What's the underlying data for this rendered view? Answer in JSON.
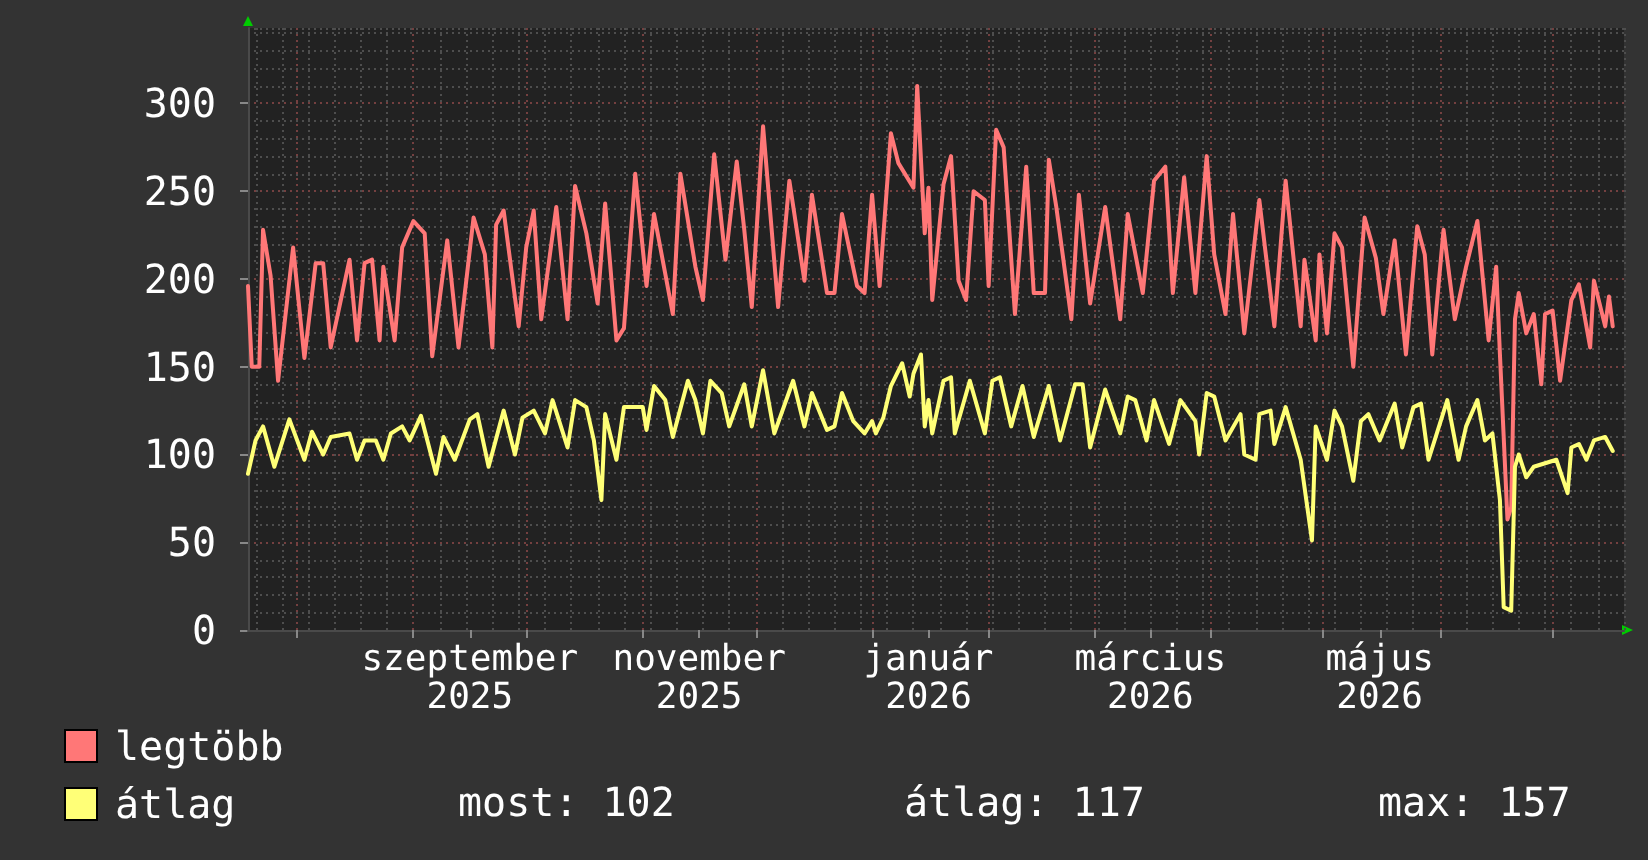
{
  "chart_data": {
    "type": "line",
    "xlim": [
      "2025-07-19",
      "2026-07-20"
    ],
    "xticks": [
      {
        "value": "2025-08-01",
        "label": null
      },
      {
        "value": "2025-09-01",
        "label": null
      },
      {
        "value": "2025-09-16",
        "label": "szeptember 2025"
      },
      {
        "value": "2025-10-01",
        "label": null
      },
      {
        "value": "2025-11-01",
        "label": null
      },
      {
        "value": "2025-11-16",
        "label": "november 2025"
      },
      {
        "value": "2025-12-01",
        "label": null
      },
      {
        "value": "2026-01-01",
        "label": null
      },
      {
        "value": "2026-01-16",
        "label": "január 2026"
      },
      {
        "value": "2026-02-01",
        "label": null
      },
      {
        "value": "2026-03-01",
        "label": null
      },
      {
        "value": "2026-03-16",
        "label": "március 2026"
      },
      {
        "value": "2026-04-01",
        "label": null
      },
      {
        "value": "2026-05-01",
        "label": null
      },
      {
        "value": "2026-05-16",
        "label": "május 2026"
      },
      {
        "value": "2026-06-01",
        "label": null
      },
      {
        "value": "2026-07-01",
        "label": null
      }
    ],
    "ylim": [
      0,
      343
    ],
    "yticks": [
      0,
      50,
      100,
      150,
      200,
      250,
      300
    ],
    "grid": true,
    "legend": "bottom left",
    "annotations": [
      "most: 102",
      "átlag: 117",
      "max: 157"
    ],
    "series": [
      {
        "name": "legtöbb",
        "color": "#ff7777",
        "x": [
          "2025-07-19",
          "2025-07-20",
          "2025-07-22",
          "2025-07-23",
          "2025-07-25",
          "2025-07-27",
          "2025-07-31",
          "2025-08-03",
          "2025-08-06",
          "2025-08-08",
          "2025-08-10",
          "2025-08-15",
          "2025-08-17",
          "2025-08-19",
          "2025-08-21",
          "2025-08-23",
          "2025-08-24",
          "2025-08-27",
          "2025-08-29",
          "2025-09-01",
          "2025-09-04",
          "2025-09-06",
          "2025-09-10",
          "2025-09-13",
          "2025-09-17",
          "2025-09-20",
          "2025-09-22",
          "2025-09-23",
          "2025-09-25",
          "2025-09-29",
          "2025-10-01",
          "2025-10-03",
          "2025-10-05",
          "2025-10-09",
          "2025-10-12",
          "2025-10-14",
          "2025-10-17",
          "2025-10-20",
          "2025-10-22",
          "2025-10-25",
          "2025-10-27",
          "2025-10-30",
          "2025-11-02",
          "2025-11-04",
          "2025-11-09",
          "2025-11-11",
          "2025-11-15",
          "2025-11-17",
          "2025-11-20",
          "2025-11-23",
          "2025-11-26",
          "2025-11-28",
          "2025-11-30",
          "2025-12-03",
          "2025-12-07",
          "2025-12-10",
          "2025-12-14",
          "2025-12-16",
          "2025-12-20",
          "2025-12-22",
          "2025-12-24",
          "2025-12-28",
          "2025-12-30",
          "2026-01-01",
          "2026-01-03",
          "2026-01-06",
          "2026-01-08",
          "2026-01-12",
          "2026-01-13",
          "2026-01-15",
          "2026-01-16",
          "2026-01-17",
          "2026-01-20",
          "2026-01-22",
          "2026-01-24",
          "2026-01-26",
          "2026-01-28",
          "2026-01-31",
          "2026-02-01",
          "2026-02-03",
          "2026-02-05",
          "2026-02-08",
          "2026-02-11",
          "2026-02-13",
          "2026-02-16",
          "2026-02-17",
          "2026-02-19",
          "2026-02-23",
          "2026-02-25",
          "2026-02-28",
          "2026-03-04",
          "2026-03-08",
          "2026-03-10",
          "2026-03-14",
          "2026-03-17",
          "2026-03-20",
          "2026-03-22",
          "2026-03-25",
          "2026-03-28",
          "2026-03-31",
          "2026-04-02",
          "2026-04-05",
          "2026-04-07",
          "2026-04-10",
          "2026-04-14",
          "2026-04-18",
          "2026-04-21",
          "2026-04-23",
          "2026-04-25",
          "2026-04-26",
          "2026-04-29",
          "2026-04-30",
          "2026-05-02",
          "2026-05-04",
          "2026-05-06",
          "2026-05-09",
          "2026-05-12",
          "2026-05-15",
          "2026-05-17",
          "2026-05-20",
          "2026-05-23",
          "2026-05-26",
          "2026-05-28",
          "2026-05-30",
          "2026-06-02",
          "2026-06-05",
          "2026-06-08",
          "2026-06-11",
          "2026-06-14",
          "2026-06-16",
          "2026-06-17",
          "2026-06-19",
          "2026-06-20",
          "2026-06-21",
          "2026-06-22",
          "2026-06-24",
          "2026-06-26",
          "2026-06-28",
          "2026-06-29",
          "2026-07-01",
          "2026-07-03",
          "2026-07-06",
          "2026-07-08",
          "2026-07-11",
          "2026-07-12",
          "2026-07-15",
          "2026-07-16",
          "2026-07-17"
        ],
        "values": [
          196,
          150,
          150,
          228,
          202,
          142,
          218,
          155,
          209,
          209,
          161,
          211,
          165,
          209,
          211,
          165,
          207,
          165,
          218,
          233,
          226,
          156,
          222,
          161,
          235,
          214,
          161,
          231,
          239,
          173,
          218,
          239,
          177,
          241,
          177,
          253,
          226,
          186,
          243,
          165,
          172,
          260,
          196,
          237,
          180,
          260,
          207,
          188,
          271,
          211,
          267,
          228,
          184,
          287,
          184,
          256,
          199,
          248,
          192,
          192,
          237,
          196,
          192,
          248,
          196,
          283,
          266,
          252,
          310,
          226,
          252,
          188,
          254,
          270,
          199,
          188,
          250,
          245,
          196,
          285,
          275,
          180,
          264,
          192,
          192,
          268,
          241,
          177,
          248,
          186,
          241,
          177,
          237,
          192,
          256,
          264,
          192,
          258,
          192,
          270,
          214,
          180,
          237,
          169,
          245,
          173,
          256,
          214,
          173,
          211,
          165,
          214,
          169,
          226,
          218,
          150,
          235,
          212,
          180,
          222,
          157,
          230,
          214,
          157,
          228,
          177,
          207,
          233,
          165,
          207,
          157,
          63,
          70,
          177,
          192,
          169,
          180,
          140,
          180,
          182,
          142,
          188,
          197,
          161,
          199,
          173,
          190,
          173
        ]
      },
      {
        "name": "átlag",
        "color": "#ffff77",
        "x": [
          "2025-07-19",
          "2025-07-21",
          "2025-07-23",
          "2025-07-26",
          "2025-07-30",
          "2025-08-03",
          "2025-08-05",
          "2025-08-08",
          "2025-08-10",
          "2025-08-15",
          "2025-08-17",
          "2025-08-19",
          "2025-08-22",
          "2025-08-24",
          "2025-08-26",
          "2025-08-29",
          "2025-08-31",
          "2025-09-03",
          "2025-09-07",
          "2025-09-09",
          "2025-09-12",
          "2025-09-16",
          "2025-09-18",
          "2025-09-21",
          "2025-09-25",
          "2025-09-28",
          "2025-09-30",
          "2025-10-03",
          "2025-10-06",
          "2025-10-08",
          "2025-10-12",
          "2025-10-14",
          "2025-10-17",
          "2025-10-19",
          "2025-10-21",
          "2025-10-22",
          "2025-10-25",
          "2025-10-27",
          "2025-11-01",
          "2025-11-02",
          "2025-11-04",
          "2025-11-07",
          "2025-11-09",
          "2025-11-13",
          "2025-11-15",
          "2025-11-17",
          "2025-11-19",
          "2025-11-22",
          "2025-11-24",
          "2025-11-28",
          "2025-11-30",
          "2025-12-03",
          "2025-12-06",
          "2025-12-11",
          "2025-12-14",
          "2025-12-16",
          "2025-12-20",
          "2025-12-22",
          "2025-12-24",
          "2025-12-27",
          "2025-12-30",
          "2026-01-01",
          "2026-01-02",
          "2026-01-04",
          "2026-01-06",
          "2026-01-09",
          "2026-01-11",
          "2026-01-12",
          "2026-01-14",
          "2026-01-15",
          "2026-01-16",
          "2026-01-17",
          "2026-01-20",
          "2026-01-22",
          "2026-01-23",
          "2026-01-27",
          "2026-01-31",
          "2026-02-02",
          "2026-02-04",
          "2026-02-07",
          "2026-02-10",
          "2026-02-13",
          "2026-02-17",
          "2026-02-20",
          "2026-02-24",
          "2026-02-26",
          "2026-02-28",
          "2026-03-04",
          "2026-03-08",
          "2026-03-10",
          "2026-03-12",
          "2026-03-15",
          "2026-03-17",
          "2026-03-21",
          "2026-03-24",
          "2026-03-28",
          "2026-03-29",
          "2026-03-31",
          "2026-04-02",
          "2026-04-05",
          "2026-04-09",
          "2026-04-10",
          "2026-04-13",
          "2026-04-14",
          "2026-04-17",
          "2026-04-18",
          "2026-04-21",
          "2026-04-25",
          "2026-04-28",
          "2026-04-29",
          "2026-05-02",
          "2026-05-04",
          "2026-05-06",
          "2026-05-09",
          "2026-05-11",
          "2026-05-13",
          "2026-05-16",
          "2026-05-20",
          "2026-05-22",
          "2026-05-25",
          "2026-05-27",
          "2026-05-29",
          "2026-06-03",
          "2026-06-06",
          "2026-06-08",
          "2026-06-11",
          "2026-06-13",
          "2026-06-15",
          "2026-06-17",
          "2026-06-18",
          "2026-06-20",
          "2026-06-21",
          "2026-06-22",
          "2026-06-24",
          "2026-06-26",
          "2026-07-02",
          "2026-07-05",
          "2026-07-06",
          "2026-07-08",
          "2026-07-10",
          "2026-07-12",
          "2026-07-15",
          "2026-07-17"
        ],
        "values": [
          89,
          108,
          116,
          93,
          120,
          97,
          113,
          100,
          110,
          112,
          97,
          108,
          108,
          97,
          112,
          116,
          108,
          122,
          89,
          110,
          97,
          120,
          123,
          93,
          125,
          100,
          121,
          125,
          112,
          131,
          104,
          131,
          127,
          108,
          74,
          123,
          97,
          127,
          127,
          114,
          139,
          131,
          110,
          142,
          131,
          112,
          142,
          135,
          116,
          140,
          116,
          148,
          112,
          142,
          116,
          135,
          114,
          116,
          135,
          119,
          112,
          119,
          112,
          121,
          139,
          152,
          133,
          146,
          157,
          116,
          131,
          112,
          142,
          144,
          112,
          142,
          112,
          142,
          144,
          116,
          139,
          110,
          139,
          108,
          140,
          140,
          104,
          137,
          112,
          133,
          131,
          108,
          131,
          106,
          131,
          119,
          100,
          135,
          133,
          108,
          123,
          100,
          97,
          123,
          125,
          106,
          127,
          97,
          51,
          116,
          97,
          125,
          116,
          85,
          119,
          123,
          108,
          129,
          104,
          127,
          129,
          97,
          131,
          97,
          116,
          131,
          108,
          112,
          74,
          13,
          11,
          93,
          100,
          87,
          93,
          97,
          78,
          104,
          106,
          97,
          108,
          110,
          102
        ]
      }
    ]
  }
}
